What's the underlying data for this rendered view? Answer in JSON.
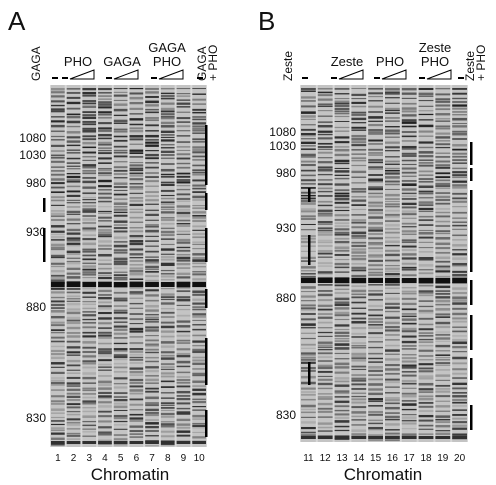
{
  "panels": [
    {
      "label": "A",
      "left_label": "GAGA",
      "groups": [
        {
          "lines": [
            "PHO"
          ]
        },
        {
          "lines": [
            "GAGA"
          ]
        },
        {
          "lines": [
            "GAGA",
            "PHO"
          ]
        }
      ],
      "right_label": [
        "GAGA",
        "+ PHO"
      ],
      "markers": [
        "1080",
        "1030",
        "980",
        "930",
        "880",
        "830"
      ],
      "lanes": [
        "1",
        "2",
        "3",
        "4",
        "5",
        "6",
        "7",
        "8",
        "9",
        "10"
      ],
      "footer": "Chromatin"
    },
    {
      "label": "B",
      "left_label": "Zeste",
      "groups": [
        {
          "lines": [
            "Zeste"
          ]
        },
        {
          "lines": [
            "PHO"
          ]
        },
        {
          "lines": [
            "Zeste",
            "PHO"
          ]
        }
      ],
      "right_label": [
        "Zeste",
        "+ PHO"
      ],
      "markers": [
        "1080",
        "1030",
        "980",
        "930",
        "880",
        "830"
      ],
      "lanes": [
        "11",
        "12",
        "13",
        "14",
        "15",
        "16",
        "17",
        "18",
        "19",
        "20"
      ],
      "footer": "Chromatin"
    }
  ]
}
